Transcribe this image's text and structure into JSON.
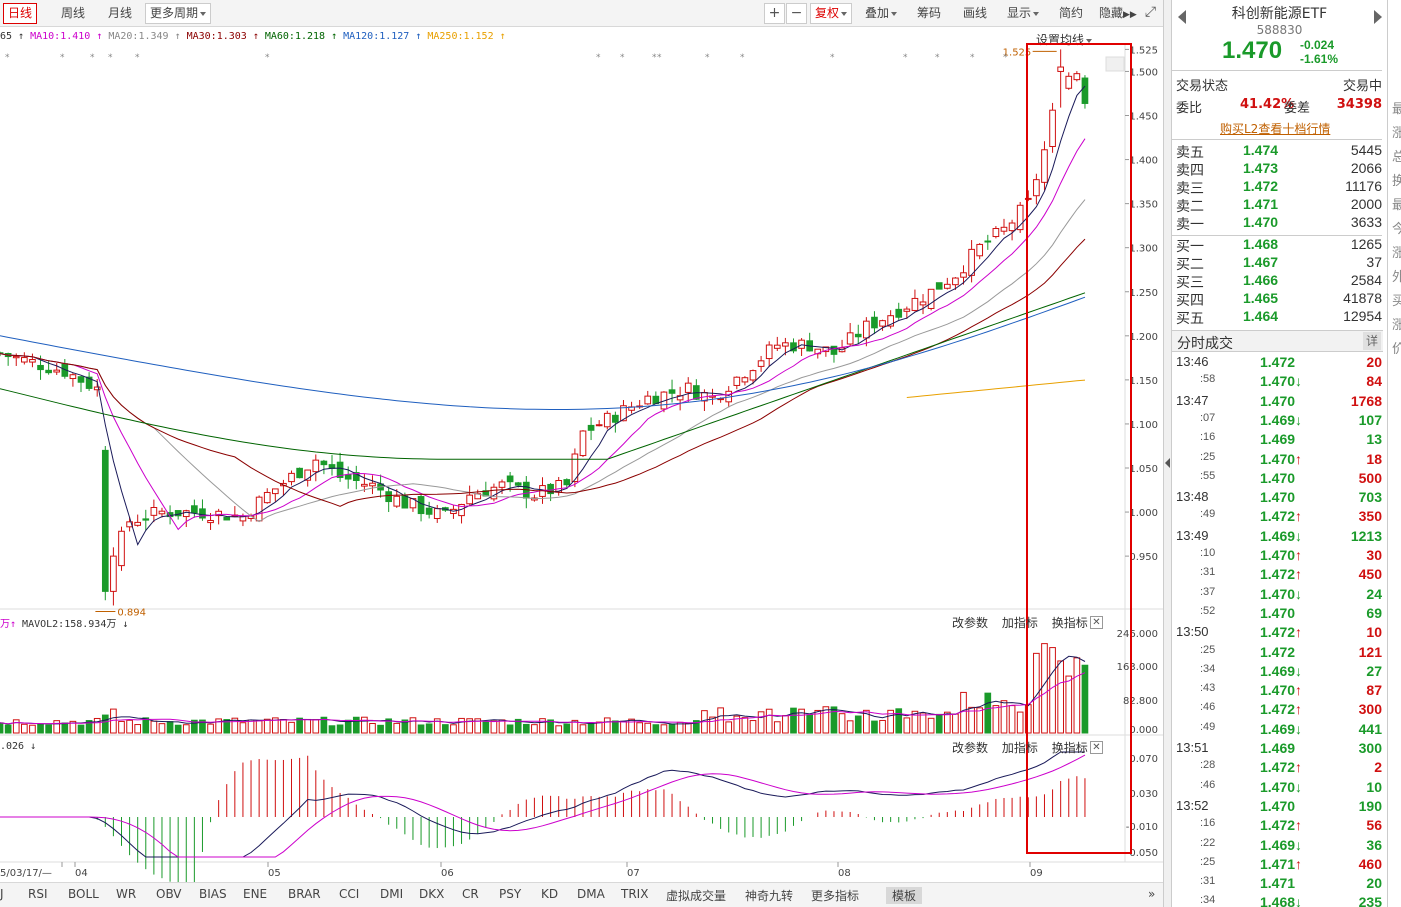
{
  "toolbar": {
    "left_tabs": [
      "日线",
      "周线",
      "月线",
      "更多周期"
    ],
    "right_items": [
      {
        "label": "复权",
        "style": "red"
      },
      {
        "label": "叠加"
      },
      {
        "label": "筹码"
      },
      {
        "label": "画线"
      },
      {
        "label": "显示"
      },
      {
        "label": "简约"
      },
      {
        "label": "隐藏"
      }
    ]
  },
  "ma_legend": [
    {
      "text": "65",
      "arrow": "↑",
      "color": "#333333"
    },
    {
      "text": "MA10:1.410",
      "arrow": "↑",
      "color": "#cc00cc"
    },
    {
      "text": "MA20:1.349",
      "arrow": "↑",
      "color": "#888888"
    },
    {
      "text": "MA30:1.303",
      "arrow": "↑",
      "color": "#8b0000"
    },
    {
      "text": "MA60:1.218",
      "arrow": "↑",
      "color": "#006400"
    },
    {
      "text": "MA120:1.127",
      "arrow": "↑",
      "color": "#1f5fbf"
    },
    {
      "text": "MA250:1.152",
      "arrow": "↑",
      "color": "#e8a000"
    }
  ],
  "set_line_label": "设置均线",
  "panel_actions": [
    "改参数",
    "加指标",
    "换指标"
  ],
  "vol_legend": {
    "prefix": "万",
    "text": "MAVOL2:158.934万"
  },
  "macd_legend": ".026",
  "bottom_tabs": [
    "J",
    "RSI",
    "BOLL",
    "WR",
    "OBV",
    "BIAS",
    "ENE",
    "BRAR",
    "CCI",
    "DMI",
    "DKX",
    "CR",
    "PSY",
    "KD",
    "DMA",
    "TRIX",
    "虚拟成交量",
    "神奇九转",
    "更多指标",
    "模板"
  ],
  "chart_data": {
    "type": "candlestick",
    "y_ticks": [
      "1.525",
      "1.500",
      "1.450",
      "1.400",
      "1.350",
      "1.300",
      "1.250",
      "1.200",
      "1.150",
      "1.100",
      "1.050",
      "1.000",
      "0.950"
    ],
    "ylim": [
      0.89,
      1.53
    ],
    "x_labels": [
      "5/03/17/—",
      "04",
      "05",
      "06",
      "07",
      "08",
      "09"
    ],
    "high_label": "1.525",
    "low_label": "0.894",
    "vol_ticks": [
      "246.000",
      "163.000",
      "82.800",
      "0.000"
    ],
    "macd_ticks": [
      "0.070",
      "0.030",
      "-0.010",
      "0.050"
    ]
  },
  "quote": {
    "name": "科创新能源ETF",
    "code": "588830",
    "price": "1.470",
    "change": "-0.024",
    "change_pct": "-1.61%",
    "status_label": "交易状态",
    "status_value": "交易中",
    "weibi_label": "委比",
    "weibi_value": "41.42%",
    "weicha_label": "委差",
    "weicha_value": "34398",
    "l2_link": "购买L2查看十档行情"
  },
  "orderbook": {
    "asks": [
      {
        "label": "卖五",
        "price": "1.474",
        "vol": "5445"
      },
      {
        "label": "卖四",
        "price": "1.473",
        "vol": "2066"
      },
      {
        "label": "卖三",
        "price": "1.472",
        "vol": "11176"
      },
      {
        "label": "卖二",
        "price": "1.471",
        "vol": "2000"
      },
      {
        "label": "卖一",
        "price": "1.470",
        "vol": "3633"
      }
    ],
    "bids": [
      {
        "label": "买一",
        "price": "1.468",
        "vol": "1265"
      },
      {
        "label": "买二",
        "price": "1.467",
        "vol": "37"
      },
      {
        "label": "买三",
        "price": "1.466",
        "vol": "2584"
      },
      {
        "label": "买四",
        "price": "1.465",
        "vol": "41878"
      },
      {
        "label": "买五",
        "price": "1.464",
        "vol": "12954"
      }
    ]
  },
  "trades_header": {
    "title": "分时成交",
    "detail": "详"
  },
  "trades": [
    {
      "time": "13:46",
      "price": "1.472",
      "dir": "",
      "vol": "20",
      "vc": "red"
    },
    {
      "time": ":58",
      "price": "1.470",
      "dir": "↓",
      "vol": "84",
      "vc": "red"
    },
    {
      "time": "13:47",
      "price": "1.470",
      "dir": "",
      "vol": "1768",
      "vc": "red"
    },
    {
      "time": ":07",
      "price": "1.469",
      "dir": "↓",
      "vol": "107",
      "vc": "green"
    },
    {
      "time": ":16",
      "price": "1.469",
      "dir": "",
      "vol": "13",
      "vc": "green"
    },
    {
      "time": ":25",
      "price": "1.470",
      "dir": "↑",
      "vol": "18",
      "vc": "red"
    },
    {
      "time": ":55",
      "price": "1.470",
      "dir": "",
      "vol": "500",
      "vc": "red"
    },
    {
      "time": "13:48",
      "price": "1.470",
      "dir": "",
      "vol": "703",
      "vc": "green"
    },
    {
      "time": ":49",
      "price": "1.472",
      "dir": "↑",
      "vol": "350",
      "vc": "red"
    },
    {
      "time": "13:49",
      "price": "1.469",
      "dir": "↓",
      "vol": "1213",
      "vc": "green"
    },
    {
      "time": ":10",
      "price": "1.470",
      "dir": "↑",
      "vol": "30",
      "vc": "red"
    },
    {
      "time": ":31",
      "price": "1.472",
      "dir": "↑",
      "vol": "450",
      "vc": "red"
    },
    {
      "time": ":37",
      "price": "1.470",
      "dir": "↓",
      "vol": "24",
      "vc": "green"
    },
    {
      "time": ":52",
      "price": "1.470",
      "dir": "",
      "vol": "69",
      "vc": "green"
    },
    {
      "time": "13:50",
      "price": "1.472",
      "dir": "↑",
      "vol": "10",
      "vc": "red"
    },
    {
      "time": ":25",
      "price": "1.472",
      "dir": "",
      "vol": "121",
      "vc": "red"
    },
    {
      "time": ":34",
      "price": "1.469",
      "dir": "↓",
      "vol": "27",
      "vc": "green"
    },
    {
      "time": ":43",
      "price": "1.470",
      "dir": "↑",
      "vol": "87",
      "vc": "red"
    },
    {
      "time": ":46",
      "price": "1.472",
      "dir": "↑",
      "vol": "300",
      "vc": "red"
    },
    {
      "time": ":49",
      "price": "1.469",
      "dir": "↓",
      "vol": "441",
      "vc": "green"
    },
    {
      "time": "13:51",
      "price": "1.469",
      "dir": "",
      "vol": "300",
      "vc": "green"
    },
    {
      "time": ":28",
      "price": "1.472",
      "dir": "↑",
      "vol": "2",
      "vc": "red"
    },
    {
      "time": ":46",
      "price": "1.470",
      "dir": "↓",
      "vol": "10",
      "vc": "green"
    },
    {
      "time": "13:52",
      "price": "1.470",
      "dir": "",
      "vol": "190",
      "vc": "green"
    },
    {
      "time": ":16",
      "price": "1.472",
      "dir": "↑",
      "vol": "56",
      "vc": "red"
    },
    {
      "time": ":22",
      "price": "1.469",
      "dir": "↓",
      "vol": "36",
      "vc": "green"
    },
    {
      "time": ":25",
      "price": "1.471",
      "dir": "↑",
      "vol": "460",
      "vc": "red"
    },
    {
      "time": ":31",
      "price": "1.471",
      "dir": "",
      "vol": "20",
      "vc": "green"
    },
    {
      "time": ":34",
      "price": "1.468",
      "dir": "↓",
      "vol": "235",
      "vc": "green"
    }
  ],
  "edge_chars": [
    "最",
    "涨",
    "总",
    "换",
    "最",
    "今",
    "涨",
    "外",
    "买",
    "涨",
    "价"
  ],
  "colors": {
    "up": "#d01010",
    "down": "#1a9a2a",
    "highlight_box": "#e00000"
  }
}
